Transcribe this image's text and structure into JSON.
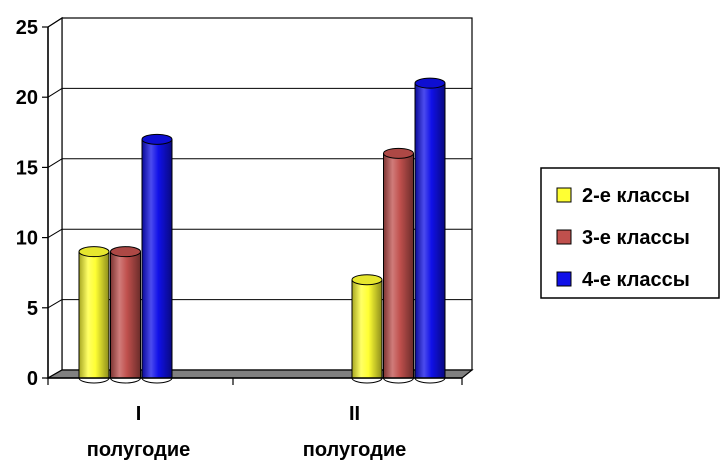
{
  "chart_data": {
    "type": "bar",
    "categories": [
      [
        "I",
        "полугодие"
      ],
      [
        "II",
        "полугодие"
      ]
    ],
    "series": [
      {
        "name": "2-е классы",
        "values": [
          9,
          7
        ],
        "color": "#ffff33"
      },
      {
        "name": "3-е классы",
        "values": [
          9,
          16
        ],
        "color": "#c0504d"
      },
      {
        "name": "4-е классы",
        "values": [
          17,
          21
        ],
        "color": "#1010e8"
      }
    ],
    "ylim": [
      0,
      25
    ],
    "yticks": [
      "0",
      "5",
      "10",
      "15",
      "20",
      "25"
    ],
    "grid": true,
    "legend": "right",
    "bar_style": "3d-cylinder"
  }
}
